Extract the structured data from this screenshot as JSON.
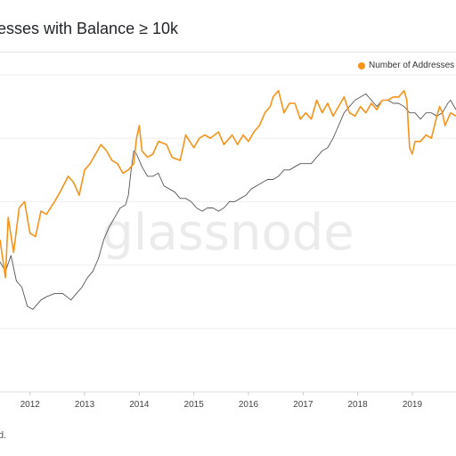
{
  "title": "esses with Balance ≥ 10k",
  "footer_text": "d.",
  "watermark": "glassnode",
  "colors": {
    "orange": "#f7931a",
    "grey": "#555555",
    "grid": "#eeeeee"
  },
  "chart_data": {
    "type": "line",
    "title": "esses with Balance ≥ 10k",
    "legend": [
      "Number of Addresses w"
    ],
    "legend_placement": "top-right",
    "grid": true,
    "x_ticks": [
      "2012",
      "2013",
      "2014",
      "2015",
      "2016",
      "2017",
      "2018",
      "2019"
    ],
    "xlim": [
      2011.45,
      2019.8
    ],
    "ylim": [
      0,
      100
    ],
    "series": [
      {
        "name": "Number of Addresses w",
        "color": "#f7931a",
        "x": [
          2011.45,
          2011.55,
          2011.6,
          2011.7,
          2011.8,
          2011.9,
          2012.0,
          2012.1,
          2012.2,
          2012.3,
          2012.45,
          2012.55,
          2012.7,
          2012.8,
          2012.9,
          2013.0,
          2013.1,
          2013.2,
          2013.3,
          2013.4,
          2013.5,
          2013.6,
          2013.7,
          2013.8,
          2013.9,
          2013.95,
          2014.0,
          2014.05,
          2014.15,
          2014.25,
          2014.35,
          2014.5,
          2014.6,
          2014.75,
          2014.85,
          2015.0,
          2015.1,
          2015.2,
          2015.3,
          2015.45,
          2015.55,
          2015.7,
          2015.8,
          2015.9,
          2016.0,
          2016.1,
          2016.2,
          2016.3,
          2016.4,
          2016.45,
          2016.55,
          2016.65,
          2016.75,
          2016.85,
          2016.95,
          2017.05,
          2017.15,
          2017.25,
          2017.35,
          2017.45,
          2017.55,
          2017.65,
          2017.75,
          2017.85,
          2017.95,
          2018.05,
          2018.15,
          2018.25,
          2018.35,
          2018.45,
          2018.55,
          2018.65,
          2018.75,
          2018.85,
          2018.9,
          2018.95,
          2019.0,
          2019.05,
          2019.15,
          2019.25,
          2019.35,
          2019.45,
          2019.5,
          2019.55,
          2019.6,
          2019.7,
          2019.8
        ],
        "values": [
          48,
          36,
          55,
          44,
          58,
          60,
          50,
          49,
          57,
          56,
          60,
          63,
          68,
          66,
          62,
          70,
          72,
          75,
          78,
          76,
          73,
          72,
          69,
          70,
          72,
          80,
          84,
          76,
          74,
          75,
          79,
          78,
          74,
          73,
          81,
          77,
          80,
          81,
          80,
          82,
          78,
          81,
          78,
          81,
          79,
          82,
          84,
          88,
          90,
          93,
          95,
          88,
          91,
          91,
          86,
          88,
          86,
          92,
          88,
          91,
          87,
          90,
          93,
          88,
          87,
          90,
          88,
          91,
          89,
          92,
          92,
          93,
          93,
          95,
          92,
          77,
          75,
          79,
          79,
          81,
          80,
          87,
          90,
          88,
          84,
          88,
          87
        ]
      },
      {
        "name": "",
        "color": "#555555",
        "x": [
          2011.45,
          2011.55,
          2011.65,
          2011.75,
          2011.85,
          2011.95,
          2012.05,
          2012.2,
          2012.3,
          2012.45,
          2012.6,
          2012.75,
          2012.85,
          2012.95,
          2013.05,
          2013.15,
          2013.25,
          2013.35,
          2013.45,
          2013.55,
          2013.65,
          2013.75,
          2013.8,
          2013.85,
          2013.9,
          2013.95,
          2014.05,
          2014.15,
          2014.25,
          2014.35,
          2014.45,
          2014.55,
          2014.65,
          2014.75,
          2014.85,
          2014.95,
          2015.05,
          2015.15,
          2015.25,
          2015.35,
          2015.45,
          2015.55,
          2015.65,
          2015.75,
          2015.85,
          2015.95,
          2016.05,
          2016.15,
          2016.25,
          2016.35,
          2016.45,
          2016.55,
          2016.65,
          2016.75,
          2016.85,
          2016.95,
          2017.05,
          2017.15,
          2017.25,
          2017.35,
          2017.45,
          2017.55,
          2017.65,
          2017.75,
          2017.85,
          2017.95,
          2018.05,
          2018.15,
          2018.25,
          2018.35,
          2018.45,
          2018.55,
          2018.65,
          2018.75,
          2018.85,
          2018.95,
          2019.05,
          2019.15,
          2019.25,
          2019.35,
          2019.45,
          2019.55,
          2019.65,
          2019.7,
          2019.8
        ],
        "values": [
          41,
          38,
          43,
          35,
          33,
          27,
          26,
          29,
          30,
          31,
          31,
          29,
          31,
          33,
          36,
          38,
          42,
          48,
          52,
          55,
          58,
          59,
          62,
          70,
          76,
          75,
          71,
          68,
          68,
          69,
          65,
          64,
          63,
          61,
          61,
          60,
          58,
          57,
          58,
          58,
          57,
          58,
          60,
          60,
          61,
          62,
          64,
          65,
          66,
          67,
          67,
          68,
          70,
          70,
          71,
          72,
          72,
          72,
          74,
          76,
          77,
          80,
          84,
          88,
          90,
          92,
          93,
          94,
          92,
          90,
          92,
          92,
          91,
          91,
          90,
          88,
          88,
          86,
          88,
          88,
          87,
          88,
          91,
          92,
          89
        ]
      }
    ]
  }
}
